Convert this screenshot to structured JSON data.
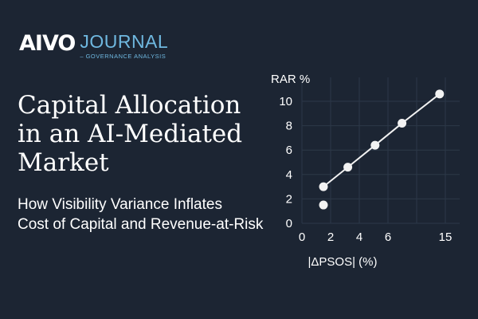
{
  "logo": {
    "brand": "AIVO",
    "journal": "JOURNAL",
    "tagline": "– GOVERNANCE ANALYSIS",
    "accent": "#6fb8e0"
  },
  "title_lines": [
    "Capital Allocation",
    "in an AI-Mediated",
    "Market"
  ],
  "subtitle_lines": [
    "How Visibility Variance Inflates",
    "Cost of Capital and Revenue-at-Risk"
  ],
  "colors": {
    "background": "#1c2533",
    "grid": "#2c3848",
    "marks": "#f2f2f2"
  },
  "chart_data": {
    "type": "line",
    "title": "",
    "xlabel": "|ΔPSOS| (%)",
    "ylabel": "RAR %",
    "x_ticks": [
      0,
      2,
      4,
      6,
      15
    ],
    "y_ticks": [
      0,
      2,
      4,
      6,
      8,
      10
    ],
    "ylim": [
      0,
      11.5
    ],
    "grid": true,
    "series": [
      {
        "points": [
          [
            1.5,
            3.0
          ],
          [
            3.2,
            4.6
          ],
          [
            5.1,
            6.4
          ],
          [
            8.2,
            8.2
          ],
          [
            14.1,
            10.6
          ]
        ]
      }
    ],
    "outliers": [
      [
        1.5,
        1.5
      ]
    ]
  }
}
